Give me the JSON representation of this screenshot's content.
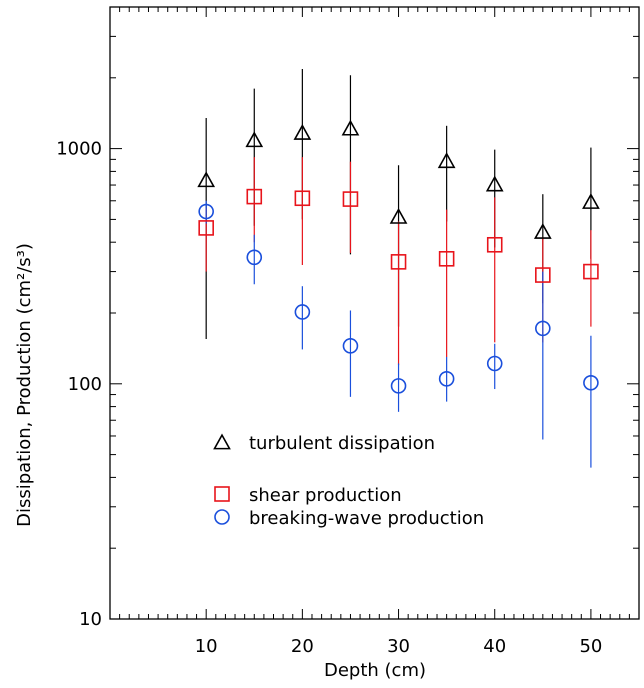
{
  "chart_data": {
    "type": "scatter",
    "title": "",
    "xlabel": "Depth (cm)",
    "ylabel": "Dissipation, Production (cm²/s³)",
    "xlim": [
      0,
      55
    ],
    "ylim": [
      10,
      4000
    ],
    "yscale": "log",
    "x_ticks": [
      10,
      20,
      30,
      40,
      50
    ],
    "x_tick_labels": [
      "10",
      "20",
      "30",
      "40",
      "50"
    ],
    "y_ticks": [
      10,
      100,
      1000
    ],
    "y_tick_labels": [
      "10",
      "100",
      "1000"
    ],
    "legend_position": "lower-center",
    "series": [
      {
        "name": "turbulent dissipation",
        "marker": "triangle",
        "color": "#000000",
        "x": [
          10,
          15,
          20,
          25,
          30,
          35,
          40,
          45,
          50
        ],
        "y": [
          730,
          1080,
          1160,
          1210,
          510,
          880,
          700,
          440,
          590
        ],
        "err_low": [
          155,
          470,
          500,
          355,
          175,
          490,
          380,
          220,
          340
        ],
        "err_high": [
          1350,
          1800,
          2180,
          2050,
          850,
          1250,
          990,
          640,
          1010
        ]
      },
      {
        "name": "shear production",
        "marker": "square",
        "color": "#e8141b",
        "x": [
          10,
          15,
          20,
          25,
          30,
          35,
          40,
          45,
          50
        ],
        "y": [
          460,
          625,
          615,
          610,
          330,
          340,
          390,
          290,
          300
        ],
        "err_low": [
          300,
          400,
          320,
          360,
          120,
          130,
          150,
          150,
          175
        ],
        "err_high": [
          560,
          920,
          920,
          880,
          490,
          550,
          620,
          420,
          450
        ]
      },
      {
        "name": "breaking-wave production",
        "marker": "circle",
        "color": "#1a4fdc",
        "x": [
          10,
          15,
          20,
          25,
          30,
          35,
          40,
          45,
          50
        ],
        "y": [
          540,
          345,
          202,
          145,
          98,
          105,
          122,
          172,
          101
        ],
        "err_low": [
          480,
          265,
          140,
          88,
          76,
          84,
          95,
          58,
          44
        ],
        "err_high": [
          600,
          430,
          260,
          205,
          122,
          130,
          148,
          300,
          160
        ]
      }
    ]
  }
}
